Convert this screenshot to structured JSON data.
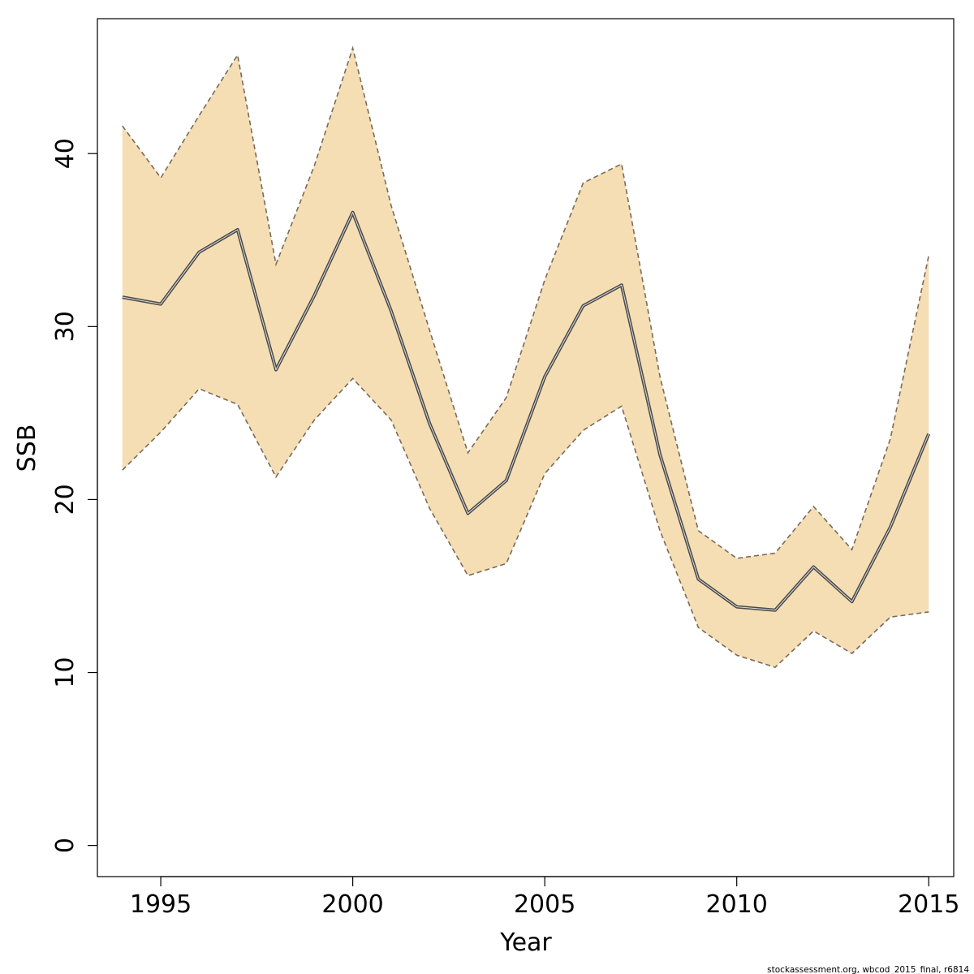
{
  "chart_data": {
    "type": "line",
    "xlabel": "Year",
    "ylabel": "SSB",
    "xlim": [
      1993.35,
      2015.65
    ],
    "ylim": [
      -1.8,
      47.8
    ],
    "xticks": [
      1995,
      2000,
      2005,
      2010,
      2015
    ],
    "yticks": [
      0,
      10,
      20,
      30,
      40
    ],
    "grid": false,
    "x": [
      1994,
      1995,
      1996,
      1997,
      1998,
      1999,
      2000,
      2001,
      2002,
      2003,
      2004,
      2005,
      2006,
      2007,
      2008,
      2009,
      2010,
      2011,
      2012,
      2013,
      2014,
      2015
    ],
    "series": [
      {
        "role": "estimate",
        "values": [
          31.7,
          31.3,
          34.3,
          35.6,
          27.5,
          31.8,
          36.6,
          30.9,
          24.4,
          19.2,
          21.1,
          27.1,
          31.2,
          32.4,
          22.6,
          15.4,
          13.8,
          13.6,
          16.1,
          14.1,
          18.4,
          23.8
        ]
      },
      {
        "role": "upper-bound",
        "values": [
          41.6,
          38.6,
          42.2,
          45.7,
          33.6,
          39.3,
          46.1,
          37.0,
          29.8,
          22.7,
          25.9,
          32.7,
          38.3,
          39.4,
          27.1,
          18.2,
          16.6,
          16.9,
          19.6,
          17.1,
          23.5,
          34.1
        ]
      },
      {
        "role": "lower-bound",
        "values": [
          21.7,
          23.9,
          26.4,
          25.5,
          21.3,
          24.6,
          27.0,
          24.6,
          19.5,
          15.6,
          16.3,
          21.5,
          24.0,
          25.4,
          18.2,
          12.6,
          11.0,
          10.3,
          12.4,
          11.1,
          13.2,
          13.5
        ]
      }
    ],
    "colors": {
      "band_fill": "#F5DEB3",
      "bound_line": "#7a6a5a",
      "estimate_line": "#4a4a4a",
      "estimate_highlight": "#dddddd"
    }
  },
  "footer": {
    "source_text": "stockassessment.org, wbcod_2015_final, r6814"
  }
}
